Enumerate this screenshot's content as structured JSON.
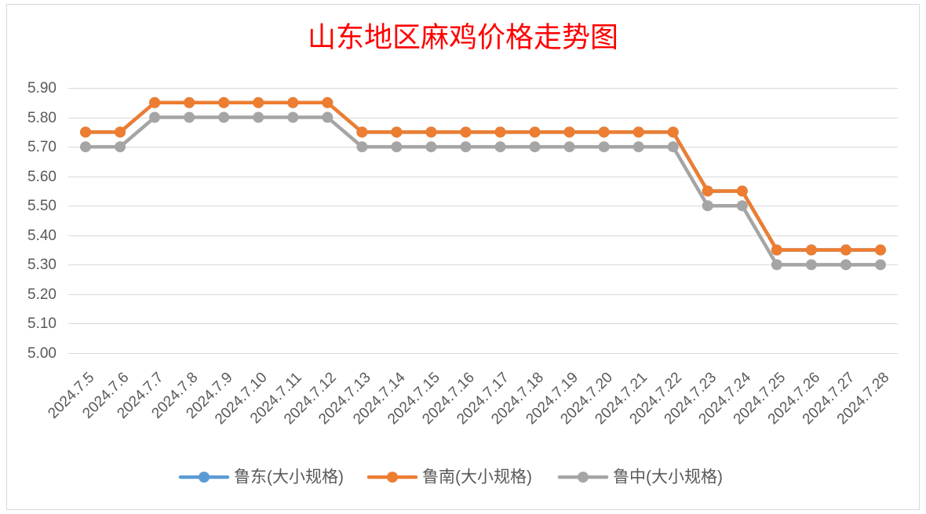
{
  "chart_data": {
    "type": "line",
    "title": "山东地区麻鸡价格走势图",
    "xlabel": "",
    "ylabel": "",
    "ylim": [
      5.0,
      5.9
    ],
    "yticks": [
      "5.00",
      "5.10",
      "5.20",
      "5.30",
      "5.40",
      "5.50",
      "5.60",
      "5.70",
      "5.80",
      "5.90"
    ],
    "grid": true,
    "legend": "bottom",
    "categories": [
      "2024.7.5",
      "2024.7.6",
      "2024.7.7",
      "2024.7.8",
      "2024.7.9",
      "2024.7.10",
      "2024.7.11",
      "2024.7.12",
      "2024.7.13",
      "2024.7.14",
      "2024.7.15",
      "2024.7.16",
      "2024.7.17",
      "2024.7.18",
      "2024.7.19",
      "2024.7.20",
      "2024.7.21",
      "2024.7.22",
      "2024.7.23",
      "2024.7.24",
      "2024.7.25",
      "2024.7.26",
      "2024.7.27",
      "2024.7.28"
    ],
    "series": [
      {
        "name": "鲁东(大小规格)",
        "color": "#5B9BD5",
        "values": [
          5.75,
          5.75,
          5.85,
          5.85,
          5.85,
          5.85,
          5.85,
          5.85,
          5.75,
          5.75,
          5.75,
          5.75,
          5.75,
          5.75,
          5.75,
          5.75,
          5.75,
          5.75,
          5.55,
          5.55,
          5.35,
          5.35,
          5.35,
          5.35
        ]
      },
      {
        "name": "鲁南(大小规格)",
        "color": "#ED7D31",
        "values": [
          5.75,
          5.75,
          5.85,
          5.85,
          5.85,
          5.85,
          5.85,
          5.85,
          5.75,
          5.75,
          5.75,
          5.75,
          5.75,
          5.75,
          5.75,
          5.75,
          5.75,
          5.75,
          5.55,
          5.55,
          5.35,
          5.35,
          5.35,
          5.35
        ]
      },
      {
        "name": "鲁中(大小规格)",
        "color": "#A5A5A5",
        "values": [
          5.7,
          5.7,
          5.8,
          5.8,
          5.8,
          5.8,
          5.8,
          5.8,
          5.7,
          5.7,
          5.7,
          5.7,
          5.7,
          5.7,
          5.7,
          5.7,
          5.7,
          5.7,
          5.5,
          5.5,
          5.3,
          5.3,
          5.3,
          5.3
        ]
      }
    ]
  }
}
